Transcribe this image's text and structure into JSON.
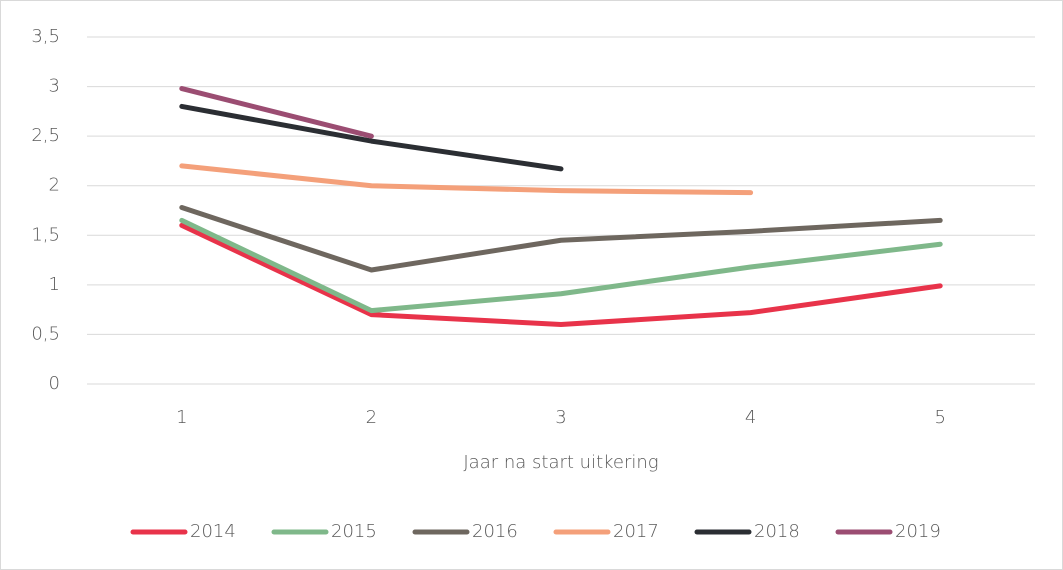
{
  "chart_data": {
    "type": "line",
    "x_label": "Jaar na start uitkering",
    "categories": [
      "1",
      "2",
      "3",
      "4",
      "5"
    ],
    "series": [
      {
        "name": "2014",
        "color": "#e8334a",
        "values": [
          1.6,
          0.7,
          0.6,
          0.72,
          0.99
        ]
      },
      {
        "name": "2015",
        "color": "#7fb88a",
        "values": [
          1.65,
          0.74,
          0.91,
          1.18,
          1.41
        ]
      },
      {
        "name": "2016",
        "color": "#6e675f",
        "values": [
          1.78,
          1.15,
          1.45,
          1.54,
          1.65
        ]
      },
      {
        "name": "2017",
        "color": "#f4a07a",
        "values": [
          2.2,
          2.0,
          1.95,
          1.93,
          null
        ]
      },
      {
        "name": "2018",
        "color": "#2b2e33",
        "values": [
          2.8,
          2.45,
          2.17,
          null,
          null
        ]
      },
      {
        "name": "2019",
        "color": "#9b4d72",
        "values": [
          2.98,
          2.5,
          null,
          null,
          null
        ]
      }
    ],
    "ylim": [
      0,
      3.5
    ],
    "yticks": [
      0,
      {
        "value": 0.5,
        "label": "0,5"
      },
      1,
      {
        "value": 1.5,
        "label": "1,5"
      },
      2,
      {
        "value": 2.5,
        "label": "2,5"
      },
      3,
      {
        "value": 3.5,
        "label": "3,5"
      }
    ],
    "grid": true,
    "legend": "bottom"
  }
}
